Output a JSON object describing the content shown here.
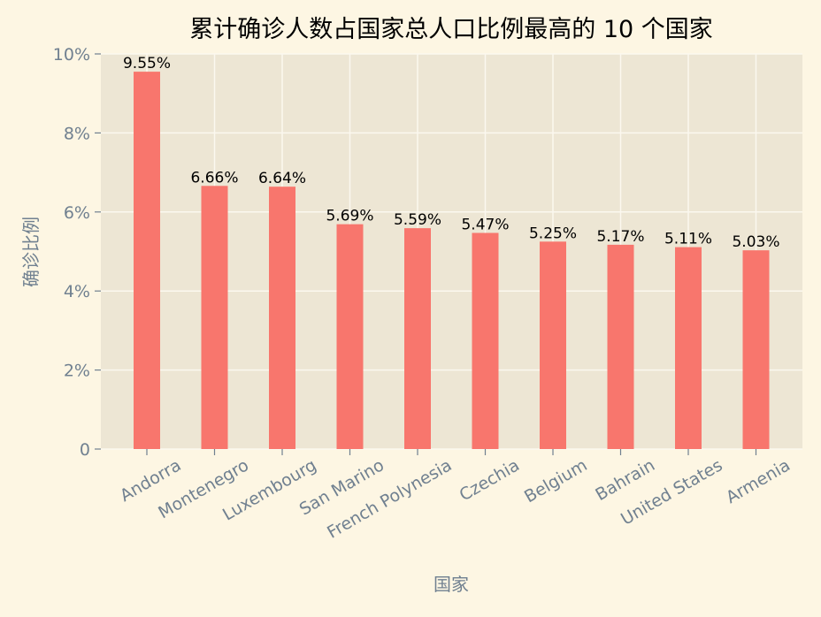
{
  "chart_data": {
    "type": "bar",
    "title": "累计确诊人数占国家总人口比例最高的 10 个国家",
    "xlabel": "国家",
    "ylabel": "确诊比例",
    "categories": [
      "Andorra",
      "Montenegro",
      "Luxembourg",
      "San Marino",
      "French Polynesia",
      "Czechia",
      "Belgium",
      "Bahrain",
      "United States",
      "Armenia"
    ],
    "values": [
      9.55,
      6.66,
      6.64,
      5.69,
      5.59,
      5.47,
      5.25,
      5.17,
      5.11,
      5.03
    ],
    "value_labels": [
      "9.55%",
      "6.66%",
      "6.64%",
      "5.69%",
      "5.59%",
      "5.47%",
      "5.25%",
      "5.17%",
      "5.11%",
      "5.03%"
    ],
    "ylim": [
      0,
      10
    ],
    "yticks": [
      0,
      2,
      4,
      6,
      8,
      10
    ],
    "ytick_labels": [
      "0",
      "2%",
      "4%",
      "6%",
      "8%",
      "10%"
    ],
    "grid": true,
    "colors": {
      "bar": "#f8766d",
      "plot_bg": "#ede6d4",
      "figure_bg": "#fdf6e3",
      "grid": "#fbf8ef",
      "tick_text": "#708090"
    }
  }
}
